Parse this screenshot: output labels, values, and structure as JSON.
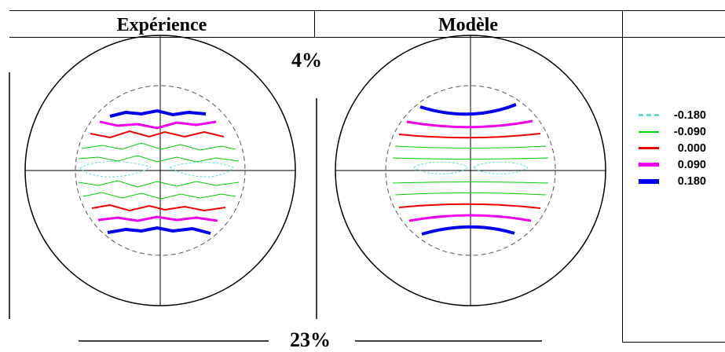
{
  "headers": {
    "left": "Expérience",
    "middle": "Modèle",
    "right": ""
  },
  "annotations": {
    "top_percent": "4%",
    "bottom_percent": "23%"
  },
  "legend": {
    "items": [
      {
        "value": "-0.180",
        "color": "#66dddd",
        "style": "dashed"
      },
      {
        "value": "-0.090",
        "color": "#00cc00",
        "style": "solid"
      },
      {
        "value": "0.000",
        "color": "#ee0000",
        "style": "solid"
      },
      {
        "value": "0.090",
        "color": "#ee00ee",
        "style": "solid"
      },
      {
        "value": "0.180",
        "color": "#0000ee",
        "style": "solid"
      }
    ]
  }
}
